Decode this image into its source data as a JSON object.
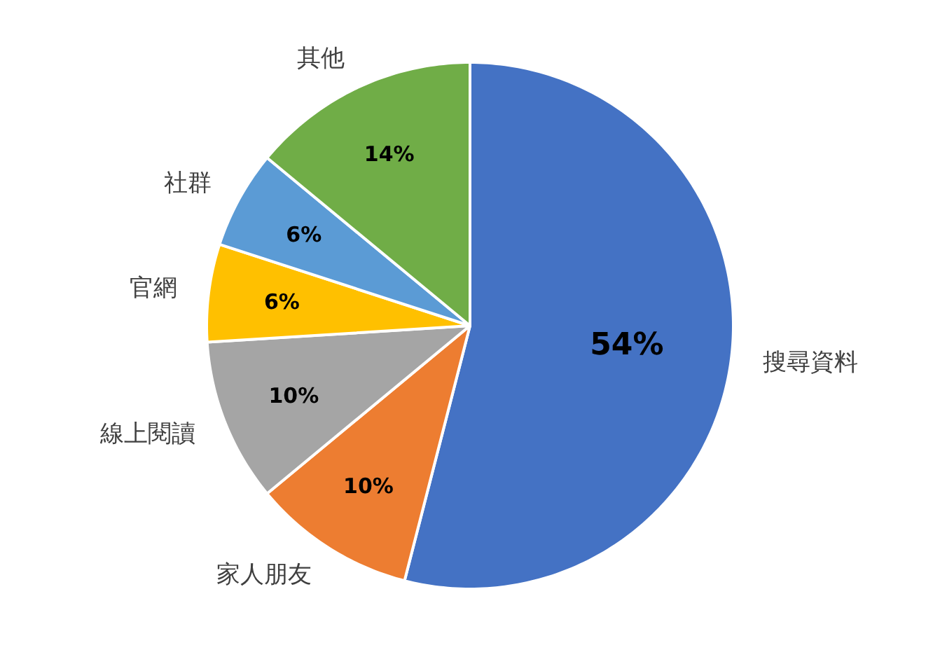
{
  "chart_data": {
    "type": "pie",
    "categories": [
      "搜尋資料",
      "家人朋友",
      "線上閱讀",
      "官網",
      "社群",
      "其他"
    ],
    "values": [
      54,
      10,
      10,
      6,
      6,
      14
    ],
    "colors": [
      "#4472c4",
      "#ed7d31",
      "#a5a5a5",
      "#ffc000",
      "#5b9bd5",
      "#70ad47"
    ],
    "value_labels": [
      "54%",
      "10%",
      "10%",
      "6%",
      "6%",
      "14%"
    ]
  }
}
